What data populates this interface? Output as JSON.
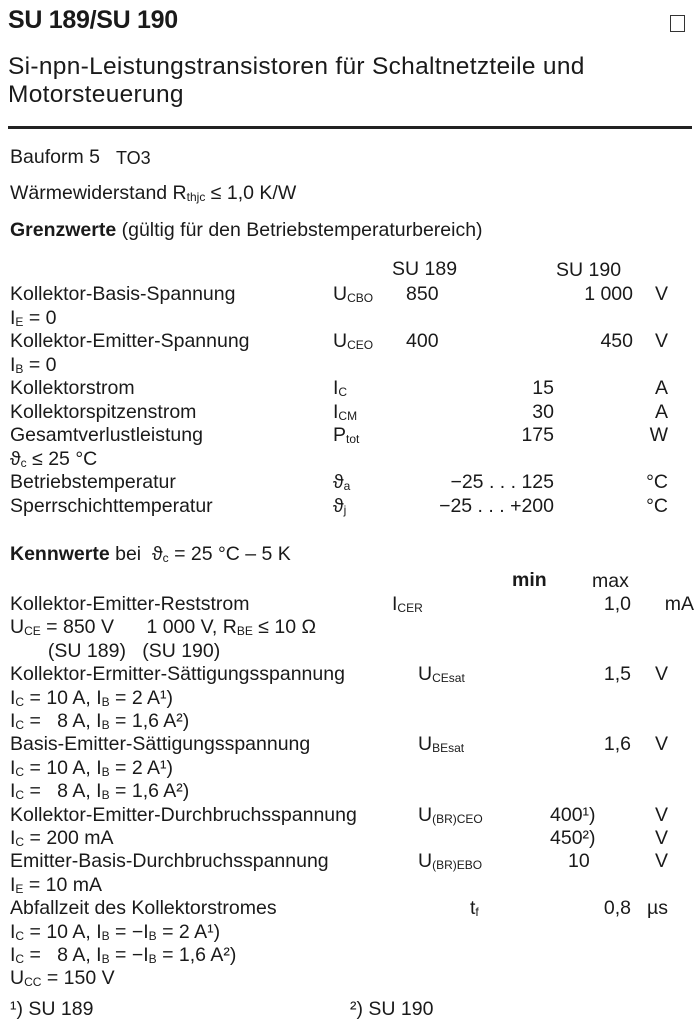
{
  "header": {
    "title": "SU 189/SU 190",
    "subtitle_line1": "Si-npn-Leistungstransistoren für Schaltnetzteile und",
    "subtitle_line2": "Motorsteuerung"
  },
  "info": {
    "bauform_label": "Bauform 5",
    "bauform_value": "TO3",
    "thermal": [
      {
        "t": "Wärmewiderstand R"
      },
      {
        "s": "thjc"
      },
      {
        "t": " ≤ 1,0 K/W"
      }
    ]
  },
  "limits": {
    "heading_bold": "Grenzwerte",
    "heading_rest": " (gültig für den Betriebstemperaturbereich)",
    "col_su189": "SU 189",
    "col_su190": "SU 190",
    "lines": [
      {
        "label": [
          {
            "t": "Kollektor-Basis-Spannung"
          }
        ],
        "symbol": [
          {
            "t": "U"
          },
          {
            "s": "CBO"
          }
        ],
        "su189": "850",
        "su190": "1 000",
        "unit": "V"
      },
      {
        "label": [
          {
            "t": "I"
          },
          {
            "s": "E"
          },
          {
            "t": " = 0"
          }
        ]
      },
      {
        "label": [
          {
            "t": "Kollektor-Emitter-Spannung"
          }
        ],
        "symbol": [
          {
            "t": "U"
          },
          {
            "s": "CEO"
          }
        ],
        "su189": "400",
        "su190": "450",
        "unit": "V"
      },
      {
        "label": [
          {
            "t": "I"
          },
          {
            "s": "B"
          },
          {
            "t": " = 0"
          }
        ]
      },
      {
        "label": [
          {
            "t": "Kollektorstrom"
          }
        ],
        "symbol": [
          {
            "t": "I"
          },
          {
            "s": "C"
          }
        ],
        "both": "15",
        "unit": "A"
      },
      {
        "label": [
          {
            "t": "Kollektorspitzenstrom"
          }
        ],
        "symbol": [
          {
            "t": "I"
          },
          {
            "s": "CM"
          }
        ],
        "both": "30",
        "unit": "A"
      },
      {
        "label": [
          {
            "t": "Gesamtverlustleistung"
          }
        ],
        "symbol": [
          {
            "t": "P"
          },
          {
            "s": "tot"
          }
        ],
        "both": "175",
        "unit": "W"
      },
      {
        "label": [
          {
            "t": "ϑ"
          },
          {
            "s": "c"
          },
          {
            "t": " ≤ 25 °C"
          }
        ]
      },
      {
        "label": [
          {
            "t": "Betriebstemperatur"
          }
        ],
        "symbol": [
          {
            "t": "ϑ"
          },
          {
            "s": "a"
          }
        ],
        "both": "−25 . . . 125",
        "unit": "°C"
      },
      {
        "label": [
          {
            "t": "Sperrschichttemperatur"
          }
        ],
        "symbol": [
          {
            "t": "ϑ"
          },
          {
            "s": "j"
          }
        ],
        "both": "−25 . . . +200",
        "unit": "°C"
      }
    ]
  },
  "characteristics": {
    "heading": [
      {
        "b": "Kennwerte"
      },
      {
        "t": " bei  ϑ"
      },
      {
        "s": "c"
      },
      {
        "t": " = 25 °C – 5 K"
      }
    ],
    "col_min": "min",
    "col_max": "max",
    "lines": [
      {
        "label": [
          {
            "t": "Kollektor-Emitter-Reststrom"
          }
        ],
        "symbol": [
          {
            "t": "I"
          },
          {
            "s": "CER"
          }
        ],
        "max": "1,0",
        "unit": "mA"
      },
      {
        "label": [
          {
            "t": "U"
          },
          {
            "s": "CE"
          },
          {
            "t": " = 850 V      1 000 V, R"
          },
          {
            "s": "BE"
          },
          {
            "t": " ≤ 10 Ω"
          }
        ]
      },
      {
        "label": [
          {
            "t": "       (SU 189)   (SU 190)"
          }
        ]
      },
      {
        "label": [
          {
            "t": "Kollektor-Ermitter-Sättigungsspannung"
          }
        ],
        "symbol": [
          {
            "t": "U"
          },
          {
            "s": "CEsat"
          }
        ],
        "max": "1,5",
        "unit": "V"
      },
      {
        "label": [
          {
            "t": "I"
          },
          {
            "s": "C"
          },
          {
            "t": " = 10 A, I"
          },
          {
            "s": "B"
          },
          {
            "t": " = 2 A¹)"
          }
        ]
      },
      {
        "label": [
          {
            "t": "I"
          },
          {
            "s": "C"
          },
          {
            "t": " =   8 A, I"
          },
          {
            "s": "B"
          },
          {
            "t": " = 1,6 A²)"
          }
        ]
      },
      {
        "label": [
          {
            "t": "Basis-Emitter-Sättigungsspannung"
          }
        ],
        "symbol": [
          {
            "t": "U"
          },
          {
            "s": "BEsat"
          }
        ],
        "max": "1,6",
        "unit": "V"
      },
      {
        "label": [
          {
            "t": "I"
          },
          {
            "s": "C"
          },
          {
            "t": " = 10 A, I"
          },
          {
            "s": "B"
          },
          {
            "t": " = 2 A¹)"
          }
        ]
      },
      {
        "label": [
          {
            "t": "I"
          },
          {
            "s": "C"
          },
          {
            "t": " =   8 A, I"
          },
          {
            "s": "B"
          },
          {
            "t": " = 1,6 A²)"
          }
        ]
      },
      {
        "label": [
          {
            "t": "Kollektor-Emitter-Durchbruchsspannung"
          }
        ],
        "symbol": [
          {
            "t": "U"
          },
          {
            "s": "(BR)CEO"
          }
        ],
        "min": "400¹)",
        "unit": "V"
      },
      {
        "label": [
          {
            "t": "I"
          },
          {
            "s": "C"
          },
          {
            "t": " = 200 mA"
          }
        ],
        "min": "450²)",
        "unit": "V"
      },
      {
        "label": [
          {
            "t": "Emitter-Basis-Durchbruchsspannung"
          }
        ],
        "symbol": [
          {
            "t": "U"
          },
          {
            "s": "(BR)EBO"
          }
        ],
        "min": "10",
        "unit": "V"
      },
      {
        "label": [
          {
            "t": "I"
          },
          {
            "s": "E"
          },
          {
            "t": " = 10 mA"
          }
        ]
      },
      {
        "label": [
          {
            "t": "Abfallzeit des Kollektorstromes"
          }
        ],
        "symbol": [
          {
            "t": "t"
          },
          {
            "s": "f"
          }
        ],
        "max": "0,8",
        "unit": "µs"
      },
      {
        "label": [
          {
            "t": "I"
          },
          {
            "s": "C"
          },
          {
            "t": " = 10 A, I"
          },
          {
            "s": "B"
          },
          {
            "t": " = −I"
          },
          {
            "s": "B"
          },
          {
            "t": " = 2 A¹)"
          }
        ]
      },
      {
        "label": [
          {
            "t": "I"
          },
          {
            "s": "C"
          },
          {
            "t": " =   8 A, I"
          },
          {
            "s": "B"
          },
          {
            "t": " = −I"
          },
          {
            "s": "B"
          },
          {
            "t": " = 1,6 A²)"
          }
        ]
      },
      {
        "label": [
          {
            "t": "U"
          },
          {
            "s": "CC"
          },
          {
            "t": " = 150 V"
          }
        ]
      }
    ]
  },
  "footnotes": [
    "¹) SU 189",
    "²) SU 190"
  ]
}
